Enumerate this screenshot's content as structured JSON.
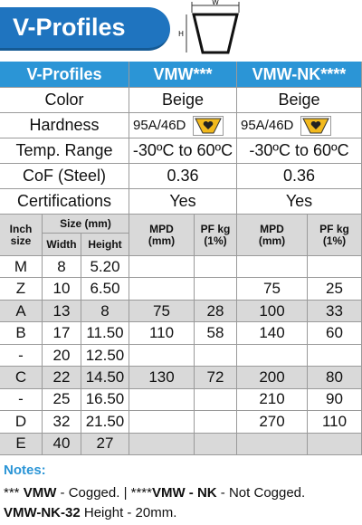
{
  "header": {
    "title": "V-Profiles",
    "diagram": {
      "width_label": "W",
      "height_label": "H"
    }
  },
  "table": {
    "columns": [
      "V-Profiles",
      "VMW***",
      "VMW-NK****"
    ],
    "properties": [
      [
        "Color",
        "Beige",
        "Beige"
      ],
      [
        "Hardness",
        "95A/46D",
        "95A/46D"
      ],
      [
        "Temp. Range",
        "-30ºC to 60ºC",
        "-30ºC to 60ºC"
      ],
      [
        "CoF (Steel)",
        "0.36",
        "0.36"
      ],
      [
        "Certifications",
        "Yes",
        "Yes"
      ]
    ],
    "sub_header": {
      "inch": "Inch\nsize",
      "size": "Size (mm)",
      "width": "Width",
      "height": "Height",
      "specs": [
        "MPD\n(mm)",
        "PF kg\n(1%)",
        "MPD\n(mm)",
        "PF kg\n(1%)"
      ]
    },
    "rows": [
      [
        "M",
        "8",
        "5.20",
        null,
        null,
        null,
        null
      ],
      [
        "Z",
        "10",
        "6.50",
        null,
        null,
        "75",
        "25"
      ],
      [
        "A",
        "13",
        "8",
        "75",
        "28",
        "100",
        "33"
      ],
      [
        "B",
        "17",
        "11.50",
        "110",
        "58",
        "140",
        "60"
      ],
      [
        "-",
        "20",
        "12.50",
        null,
        null,
        null,
        null
      ],
      [
        "C",
        "22",
        "14.50",
        "130",
        "72",
        "200",
        "80"
      ],
      [
        "-",
        "25",
        "16.50",
        null,
        null,
        "210",
        "90"
      ],
      [
        "D",
        "32",
        "21.50",
        null,
        null,
        "270",
        "110"
      ],
      [
        "E",
        "40",
        "27",
        null,
        null,
        null,
        null
      ]
    ]
  },
  "notes": {
    "title": "Notes:",
    "lines": [
      [
        {
          "text": "*** ",
          "bold": false
        },
        {
          "text": "VMW",
          "bold": true
        },
        {
          "text": " - Cogged. | ****",
          "bold": false
        },
        {
          "text": "VMW - NK",
          "bold": true
        },
        {
          "text": " - Not Cogged.",
          "bold": false
        }
      ],
      [
        {
          "text": "VMW-NK-32",
          "bold": true
        },
        {
          "text": " Height - 20mm.",
          "bold": false
        }
      ]
    ]
  }
}
